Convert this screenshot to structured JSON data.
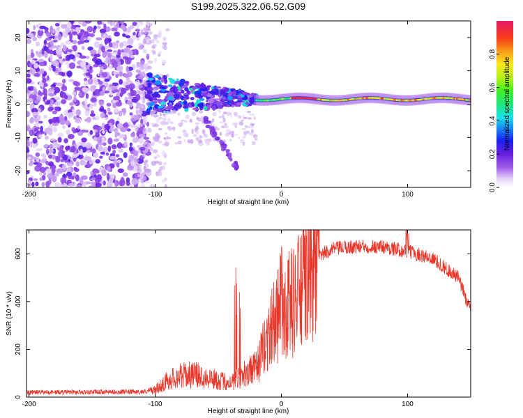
{
  "title": "S199.2025.322.06.52.G09",
  "chart_data": [
    {
      "type": "heatmap",
      "name": "spectrogram",
      "xlabel": "Height of straight line (km)",
      "ylabel": "Frequency (Hz)",
      "xlim": [
        -202,
        150
      ],
      "ylim": [
        -25,
        25
      ],
      "xticks": [
        -200,
        -100,
        0,
        100
      ],
      "yticks": [
        -20,
        -10,
        0,
        10,
        20
      ],
      "colorbar": {
        "label": "Normalized spectral amplitude",
        "range": [
          0,
          1
        ],
        "ticks": [
          0.0,
          0.2,
          0.4,
          0.6,
          0.8
        ]
      },
      "features": [
        {
          "region": "noise",
          "x_range": [
            -202,
            -105
          ],
          "freq_range": [
            -25,
            25
          ],
          "amplitude": 0.15
        },
        {
          "region": "scattered",
          "x_range": [
            -105,
            -20
          ],
          "freq_range": [
            -3,
            12
          ],
          "amplitude": 0.3
        },
        {
          "region": "descending_branch",
          "x_range": [
            -60,
            -35
          ],
          "freq_range": [
            -19,
            -5
          ],
          "amplitude": 0.15
        },
        {
          "region": "steady_tone",
          "x_range": [
            -20,
            150
          ],
          "center_freq": 1.5,
          "amplitude": 0.9
        }
      ]
    },
    {
      "type": "line",
      "name": "snr",
      "xlabel": "Height of straight line (km)",
      "ylabel": "SNR (10 * v/v)",
      "xlim": [
        -202,
        150
      ],
      "ylim": [
        0,
        700
      ],
      "xticks": [
        -200,
        -100,
        0,
        100
      ],
      "yticks": [
        0,
        200,
        400,
        600
      ],
      "color": "#e8382c",
      "envelope": {
        "x": [
          -202,
          -110,
          -100,
          -90,
          -80,
          -70,
          -60,
          -50,
          -40,
          -30,
          -20,
          -10,
          0,
          10,
          20,
          30,
          40,
          60,
          80,
          100,
          120,
          140,
          150
        ],
        "y": [
          20,
          22,
          30,
          70,
          90,
          95,
          85,
          70,
          60,
          100,
          120,
          260,
          380,
          400,
          500,
          590,
          620,
          630,
          630,
          610,
          580,
          500,
          360
        ]
      }
    }
  ]
}
